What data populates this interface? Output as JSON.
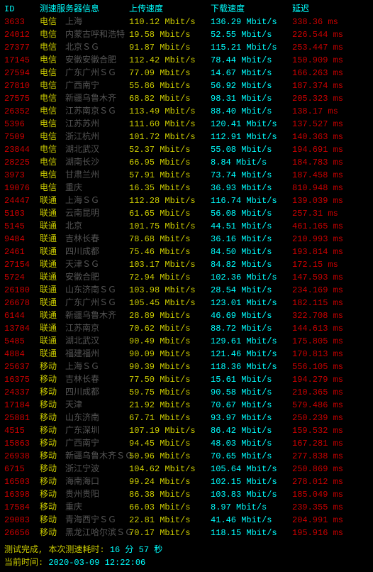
{
  "header": {
    "id": "ID",
    "info": "测速服务器信息",
    "upload": "上传速度",
    "download": "下载速度",
    "latency": "延迟"
  },
  "colors": {
    "id": "#cc0000",
    "isp": "#cdcd00",
    "up": "#cdcd00",
    "down": "#00ffff",
    "lat": "#cc0000",
    "header": "#00ffff",
    "footer_label": "#cdcd00",
    "footer_value": "#00ffff",
    "loc_dim": "#555555"
  },
  "rows": [
    {
      "id": "3633",
      "isp": "电信",
      "loc": "上海",
      "up": "110.12 Mbit/s",
      "down": "136.29 Mbit/s",
      "lat": "338.36 ms"
    },
    {
      "id": "24012",
      "isp": "电信",
      "loc": "内蒙古呼和浩特",
      "up": "19.58 Mbit/s",
      "down": "52.55 Mbit/s",
      "lat": "226.544 ms"
    },
    {
      "id": "27377",
      "isp": "电信",
      "loc": "北京ＳＧ",
      "up": "91.87 Mbit/s",
      "down": "115.21 Mbit/s",
      "lat": "253.447 ms"
    },
    {
      "id": "17145",
      "isp": "电信",
      "loc": "安徽安徽合肥",
      "up": "112.42 Mbit/s",
      "down": "78.44 Mbit/s",
      "lat": "150.909 ms"
    },
    {
      "id": "27594",
      "isp": "电信",
      "loc": "广东广州ＳＧ",
      "up": "77.09 Mbit/s",
      "down": "14.67 Mbit/s",
      "lat": "166.263 ms"
    },
    {
      "id": "27810",
      "isp": "电信",
      "loc": "广西南宁",
      "up": "55.86 Mbit/s",
      "down": "56.92 Mbit/s",
      "lat": "187.374 ms"
    },
    {
      "id": "27575",
      "isp": "电信",
      "loc": "新疆乌鲁木齐",
      "up": "68.82 Mbit/s",
      "down": "98.31 Mbit/s",
      "lat": "205.323 ms"
    },
    {
      "id": "26352",
      "isp": "电信",
      "loc": "江苏南京ＳＧ",
      "up": "113.49 Mbit/s",
      "down": "88.40 Mbit/s",
      "lat": "138.17 ms"
    },
    {
      "id": "5396",
      "isp": "电信",
      "loc": "江苏苏州",
      "up": "111.60 Mbit/s",
      "down": "120.41 Mbit/s",
      "lat": "137.527 ms"
    },
    {
      "id": "7509",
      "isp": "电信",
      "loc": "浙江杭州",
      "up": "101.72 Mbit/s",
      "down": "112.91 Mbit/s",
      "lat": "140.363 ms"
    },
    {
      "id": "23844",
      "isp": "电信",
      "loc": "湖北武汉",
      "up": "52.37 Mbit/s",
      "down": "55.08 Mbit/s",
      "lat": "194.691 ms"
    },
    {
      "id": "28225",
      "isp": "电信",
      "loc": "湖南长沙",
      "up": "66.95 Mbit/s",
      "down": "8.84 Mbit/s",
      "lat": "184.783 ms"
    },
    {
      "id": "3973",
      "isp": "电信",
      "loc": "甘肃兰州",
      "up": "57.91 Mbit/s",
      "down": "73.74 Mbit/s",
      "lat": "187.458 ms"
    },
    {
      "id": "19076",
      "isp": "电信",
      "loc": "重庆",
      "up": "16.35 Mbit/s",
      "down": "36.93 Mbit/s",
      "lat": "810.948 ms"
    },
    {
      "id": "24447",
      "isp": "联通",
      "loc": "上海ＳＧ",
      "up": "112.28 Mbit/s",
      "down": "116.74 Mbit/s",
      "lat": "139.039 ms"
    },
    {
      "id": "5103",
      "isp": "联通",
      "loc": "云南昆明",
      "up": "61.65 Mbit/s",
      "down": "56.08 Mbit/s",
      "lat": "257.31 ms"
    },
    {
      "id": "5145",
      "isp": "联通",
      "loc": "北京",
      "up": "101.75 Mbit/s",
      "down": "44.51 Mbit/s",
      "lat": "461.165 ms"
    },
    {
      "id": "9484",
      "isp": "联通",
      "loc": "吉林长春",
      "up": "78.68 Mbit/s",
      "down": "36.16 Mbit/s",
      "lat": "210.993 ms"
    },
    {
      "id": "2461",
      "isp": "联通",
      "loc": "四川成都",
      "up": "75.46 Mbit/s",
      "down": "84.50 Mbit/s",
      "lat": "193.814 ms"
    },
    {
      "id": "27154",
      "isp": "联通",
      "loc": "天津ＳＧ",
      "up": "103.17 Mbit/s",
      "down": "84.82 Mbit/s",
      "lat": "172.15 ms"
    },
    {
      "id": "5724",
      "isp": "联通",
      "loc": "安徽合肥",
      "up": "72.94 Mbit/s",
      "down": "102.36 Mbit/s",
      "lat": "147.593 ms"
    },
    {
      "id": "26180",
      "isp": "联通",
      "loc": "山东济南ＳＧ",
      "up": "103.98 Mbit/s",
      "down": "28.54 Mbit/s",
      "lat": "234.169 ms"
    },
    {
      "id": "26678",
      "isp": "联通",
      "loc": "广东广州ＳＧ",
      "up": "105.45 Mbit/s",
      "down": "123.01 Mbit/s",
      "lat": "182.115 ms"
    },
    {
      "id": "6144",
      "isp": "联通",
      "loc": "新疆乌鲁木齐",
      "up": "28.89 Mbit/s",
      "down": "46.69 Mbit/s",
      "lat": "322.708 ms"
    },
    {
      "id": "13704",
      "isp": "联通",
      "loc": "江苏南京",
      "up": "70.62 Mbit/s",
      "down": "88.72 Mbit/s",
      "lat": "144.613 ms"
    },
    {
      "id": "5485",
      "isp": "联通",
      "loc": "湖北武汉",
      "up": "90.49 Mbit/s",
      "down": "129.61 Mbit/s",
      "lat": "175.805 ms"
    },
    {
      "id": "4884",
      "isp": "联通",
      "loc": "福建福州",
      "up": "90.09 Mbit/s",
      "down": "121.46 Mbit/s",
      "lat": "170.813 ms"
    },
    {
      "id": "25637",
      "isp": "移动",
      "loc": "上海ＳＧ",
      "up": "90.39 Mbit/s",
      "down": "118.36 Mbit/s",
      "lat": "556.105 ms"
    },
    {
      "id": "16375",
      "isp": "移动",
      "loc": "吉林长春",
      "up": "77.50 Mbit/s",
      "down": "15.61 Mbit/s",
      "lat": "194.279 ms"
    },
    {
      "id": "24337",
      "isp": "移动",
      "loc": "四川成都",
      "up": "59.75 Mbit/s",
      "down": "90.58 Mbit/s",
      "lat": "210.365 ms"
    },
    {
      "id": "17184",
      "isp": "移动",
      "loc": "天津",
      "up": "21.92 Mbit/s",
      "down": "70.67 Mbit/s",
      "lat": "579.486 ms"
    },
    {
      "id": "25881",
      "isp": "移动",
      "loc": "山东济南",
      "up": "67.71 Mbit/s",
      "down": "93.97 Mbit/s",
      "lat": "250.239 ms"
    },
    {
      "id": "4515",
      "isp": "移动",
      "loc": "广东深圳",
      "up": "107.19 Mbit/s",
      "down": "86.42 Mbit/s",
      "lat": "159.532 ms"
    },
    {
      "id": "15863",
      "isp": "移动",
      "loc": "广西南宁",
      "up": "94.45 Mbit/s",
      "down": "48.03 Mbit/s",
      "lat": "167.281 ms"
    },
    {
      "id": "26938",
      "isp": "移动",
      "loc": "新疆乌鲁木齐ＳＧ",
      "up": "50.96 Mbit/s",
      "down": "70.65 Mbit/s",
      "lat": "277.838 ms"
    },
    {
      "id": "6715",
      "isp": "移动",
      "loc": "浙江宁波",
      "up": "104.62 Mbit/s",
      "down": "105.64 Mbit/s",
      "lat": "250.869 ms"
    },
    {
      "id": "16503",
      "isp": "移动",
      "loc": "海南海口",
      "up": "99.24 Mbit/s",
      "down": "102.15 Mbit/s",
      "lat": "278.012 ms"
    },
    {
      "id": "16398",
      "isp": "移动",
      "loc": "贵州贵阳",
      "up": "86.38 Mbit/s",
      "down": "103.83 Mbit/s",
      "lat": "185.049 ms"
    },
    {
      "id": "17584",
      "isp": "移动",
      "loc": "重庆",
      "up": "66.03 Mbit/s",
      "down": "8.97 Mbit/s",
      "lat": "239.355 ms"
    },
    {
      "id": "29083",
      "isp": "移动",
      "loc": "青海西宁ＳＧ",
      "up": "22.81 Mbit/s",
      "down": "41.46 Mbit/s",
      "lat": "204.991 ms"
    },
    {
      "id": "26656",
      "isp": "移动",
      "loc": "黑龙江哈尔滨ＳＧ",
      "up": "70.17 Mbit/s",
      "down": "118.15 Mbit/s",
      "lat": "195.916 ms"
    }
  ],
  "footer": {
    "line1_label": "测试完成, 本次测速耗时:",
    "line1_value": "16 分 57 秒",
    "line2_label": "当前时间:",
    "line2_value": "2020-03-09 12:22:06"
  }
}
